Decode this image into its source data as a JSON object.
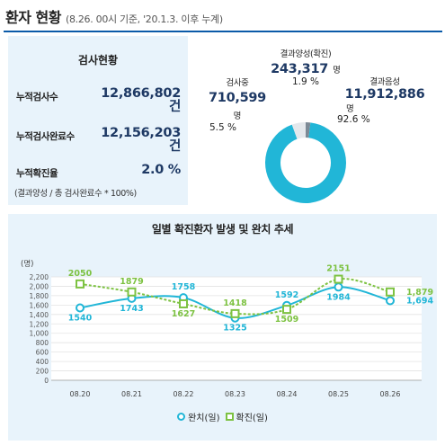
{
  "header": {
    "title": "환자 현황",
    "subtitle": "(8.26. 00시 기준, '20.1.3. 이후 누계)"
  },
  "test_status": {
    "title": "검사현황",
    "rows": [
      {
        "label": "누적검사수",
        "value": "12,866,802",
        "unit": "건"
      },
      {
        "label": "누적검사완료수",
        "value": "12,156,203",
        "unit": "건"
      },
      {
        "label": "누적확진율",
        "value": "2.0 %"
      }
    ],
    "note": "(결과양성 / 총 검사완료수 * 100%)"
  },
  "donut": {
    "positive": {
      "label": "결과양성(확진)",
      "value": "243,317",
      "unit": "명",
      "pct": "1.9 %",
      "fraction": 0.019,
      "color": "#7d8a96"
    },
    "testing": {
      "label": "검사중",
      "value": "710,599",
      "unit": "명",
      "pct": "5.5 %",
      "fraction": 0.055,
      "color": "#e4e8ec"
    },
    "negative": {
      "label": "결과음성",
      "value": "11,912,886",
      "unit": "명",
      "pct": "92.6 %",
      "fraction": 0.926,
      "color": "#21b6d7"
    }
  },
  "chart_data": {
    "type": "line",
    "title": "일별 확진환자 발생 및 완치 추세",
    "ylabel": "(명)",
    "categories": [
      "08.20",
      "08.21",
      "08.22",
      "08.23",
      "08.24",
      "08.25",
      "08.26"
    ],
    "ylim": [
      0,
      2200
    ],
    "yticks": [
      0,
      200,
      400,
      600,
      800,
      1000,
      1200,
      1400,
      1600,
      1800,
      2000,
      2200
    ],
    "ytick_labels": [
      "0",
      "200",
      "400",
      "600",
      "800",
      "1,000",
      "1,200",
      "1,400",
      "1,600",
      "1,800",
      "2,000",
      "2,200"
    ],
    "grid": true,
    "legend": "bottom",
    "series": [
      {
        "name": "완치(일)",
        "values": [
          1540,
          1743,
          1758,
          1325,
          1592,
          1984,
          1694
        ],
        "labels": [
          "1540",
          "1743",
          "1758",
          "1325",
          "1592",
          "1984",
          "1,694"
        ],
        "color": "#21b6d7",
        "style": "solid",
        "marker": "circle"
      },
      {
        "name": "확진(일)",
        "values": [
          2050,
          1879,
          1627,
          1418,
          1509,
          2151,
          1879
        ],
        "labels": [
          "2050",
          "1879",
          "1627",
          "1418",
          "1509",
          "2151",
          "1,879"
        ],
        "color": "#7dc242",
        "style": "dashed",
        "marker": "square"
      }
    ]
  }
}
